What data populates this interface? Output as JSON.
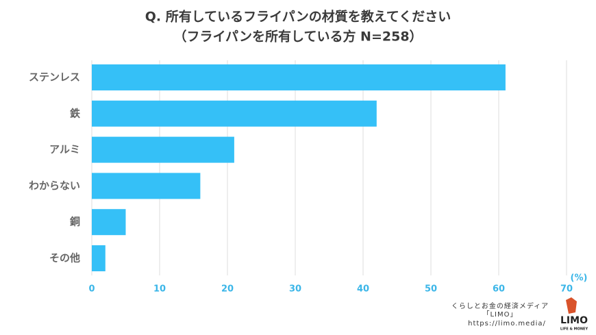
{
  "chart_data": {
    "type": "hbar",
    "title": "Q. 所有しているフライパンの材質を教えてください",
    "subtitle": "（フライパンを所有している方 N=258）",
    "categories": [
      "ステンレス",
      "鉄",
      "アルミ",
      "わからない",
      "銅",
      "その他"
    ],
    "values": [
      61,
      42,
      21,
      16,
      5,
      2
    ],
    "color": "#35c0f7",
    "xlim": [
      0,
      70
    ],
    "xticks": [
      0,
      10,
      20,
      30,
      40,
      50,
      60,
      70
    ],
    "x_label": "(%)",
    "grid": true
  },
  "footer": {
    "tagline": "くらしとお金の経済メディア",
    "brand": "「LIMO」",
    "url": "https://limo.media/",
    "logo": "LIMO",
    "logo_sub": "LIFE & MONEY"
  }
}
